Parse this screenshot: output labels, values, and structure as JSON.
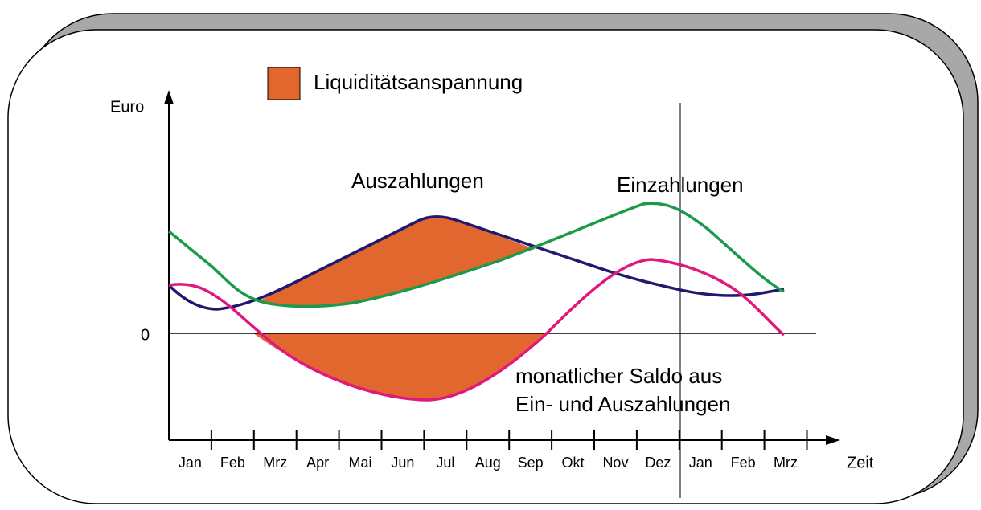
{
  "legend": {
    "label": "Liquiditätsanspannung"
  },
  "axes": {
    "y_label": "Euro",
    "zero_label": "0",
    "x_label": "Zeit",
    "months": [
      "Jan",
      "Feb",
      "Mrz",
      "Apr",
      "Mai",
      "Jun",
      "Jul",
      "Aug",
      "Sep",
      "Okt",
      "Nov",
      "Dez",
      "Jan",
      "Feb",
      "Mrz"
    ]
  },
  "curves": {
    "outflows": "Auszahlungen",
    "inflows": "Einzahlungen",
    "balance": [
      "monatlicher Saldo aus",
      "Ein- und Auszahlungen"
    ]
  }
}
